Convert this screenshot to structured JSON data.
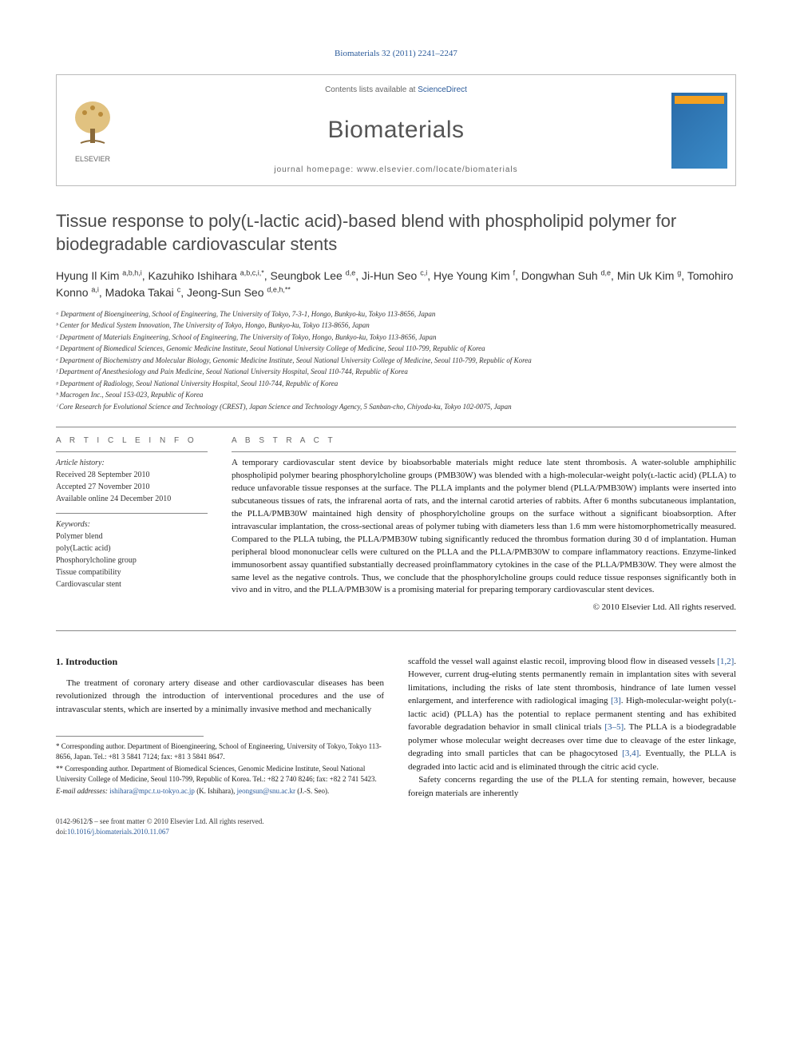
{
  "citation": "Biomaterials 32 (2011) 2241–2247",
  "header": {
    "contents_prefix": "Contents lists available at ",
    "contents_link": "ScienceDirect",
    "journal": "Biomaterials",
    "homepage_prefix": "journal homepage: ",
    "homepage_url": "www.elsevier.com/locate/biomaterials",
    "publisher": "ELSEVIER"
  },
  "title": "Tissue response to poly(ʟ-lactic acid)-based blend with phospholipid polymer for biodegradable cardiovascular stents",
  "authors_html": "Hyung Il Kim <sup>a,b,h,i</sup>, Kazuhiko Ishihara <sup>a,b,c,i,*</sup>, Seungbok Lee <sup>d,e</sup>, Ji-Hun Seo <sup>c,i</sup>, Hye Young Kim <sup>f</sup>, Dongwhan Suh <sup>d,e</sup>, Min Uk Kim <sup>g</sup>, Tomohiro Konno <sup>a,i</sup>, Madoka Takai <sup>c</sup>, Jeong-Sun Seo <sup>d,e,h,**</sup>",
  "affiliations": [
    "ᵃ Department of Bioengineering, School of Engineering, The University of Tokyo, 7-3-1, Hongo, Bunkyo-ku, Tokyo 113-8656, Japan",
    "ᵇ Center for Medical System Innovation, The University of Tokyo, Hongo, Bunkyo-ku, Tokyo 113-8656, Japan",
    "ᶜ Department of Materials Engineering, School of Engineering, The University of Tokyo, Hongo, Bunkyo-ku, Tokyo 113-8656, Japan",
    "ᵈ Department of Biomedical Sciences, Genomic Medicine Institute, Seoul National University College of Medicine, Seoul 110-799, Republic of Korea",
    "ᵉ Department of Biochemistry and Molecular Biology, Genomic Medicine Institute, Seoul National University College of Medicine, Seoul 110-799, Republic of Korea",
    "ᶠ Department of Anesthesiology and Pain Medicine, Seoul National University Hospital, Seoul 110-744, Republic of Korea",
    "ᵍ Department of Radiology, Seoul National University Hospital, Seoul 110-744, Republic of Korea",
    "ʰ Macrogen Inc., Seoul 153-023, Republic of Korea",
    "ⁱ Core Research for Evolutional Science and Technology (CREST), Japan Science and Technology Agency, 5 Sanban-cho, Chiyoda-ku, Tokyo 102-0075, Japan"
  ],
  "article_info": {
    "heading": "A R T I C L E   I N F O",
    "history_label": "Article history:",
    "history": [
      "Received 28 September 2010",
      "Accepted 27 November 2010",
      "Available online 24 December 2010"
    ],
    "keywords_label": "Keywords:",
    "keywords": [
      "Polymer blend",
      "poly(Lactic acid)",
      "Phosphorylcholine group",
      "Tissue compatibility",
      "Cardiovascular stent"
    ]
  },
  "abstract": {
    "heading": "A B S T R A C T",
    "text": "A temporary cardiovascular stent device by bioabsorbable materials might reduce late stent thrombosis. A water-soluble amphiphilic phospholipid polymer bearing phosphorylcholine groups (PMB30W) was blended with a high-molecular-weight poly(ʟ-lactic acid) (PLLA) to reduce unfavorable tissue responses at the surface. The PLLA implants and the polymer blend (PLLA/PMB30W) implants were inserted into subcutaneous tissues of rats, the infrarenal aorta of rats, and the internal carotid arteries of rabbits. After 6 months subcutaneous implantation, the PLLA/PMB30W maintained high density of phosphorylcholine groups on the surface without a significant bioabsorption. After intravascular implantation, the cross-sectional areas of polymer tubing with diameters less than 1.6 mm were histomorphometrically measured. Compared to the PLLA tubing, the PLLA/PMB30W tubing significantly reduced the thrombus formation during 30 d of implantation. Human peripheral blood mononuclear cells were cultured on the PLLA and the PLLA/PMB30W to compare inflammatory reactions. Enzyme-linked immunosorbent assay quantified substantially decreased proinflammatory cytokines in the case of the PLLA/PMB30W. They were almost the same level as the negative controls. Thus, we conclude that the phosphorylcholine groups could reduce tissue responses significantly both in vivo and in vitro, and the PLLA/PMB30W is a promising material for preparing temporary cardiovascular stent devices.",
    "copyright": "© 2010 Elsevier Ltd. All rights reserved."
  },
  "body": {
    "section1_heading": "1. Introduction",
    "col1_p1": "The treatment of coronary artery disease and other cardiovascular diseases has been revolutionized through the introduction of interventional procedures and the use of intravascular stents, which are inserted by a minimally invasive method and mechanically",
    "col2_p1_pre": "scaffold the vessel wall against elastic recoil, improving blood flow in diseased vessels ",
    "col2_p1_ref1": "[1,2]",
    "col2_p1_mid1": ". However, current drug-eluting stents permanently remain in implantation sites with several limitations, including the risks of late stent thrombosis, hindrance of late lumen vessel enlargement, and interference with radiological imaging ",
    "col2_p1_ref2": "[3]",
    "col2_p1_mid2": ". High-molecular-weight poly(ʟ-lactic acid) (PLLA) has the potential to replace permanent stenting and has exhibited favorable degradation behavior in small clinical trials ",
    "col2_p1_ref3": "[3–5]",
    "col2_p1_mid3": ". The PLLA is a biodegradable polymer whose molecular weight decreases over time due to cleavage of the ester linkage, degrading into small particles that can be phagocytosed ",
    "col2_p1_ref4": "[3,4]",
    "col2_p1_end": ". Eventually, the PLLA is degraded into lactic acid and is eliminated through the citric acid cycle.",
    "col2_p2": "Safety concerns regarding the use of the PLLA for stenting remain, however, because foreign materials are inherently"
  },
  "footnotes": {
    "corr1": "* Corresponding author. Department of Bioengineering, School of Engineering, University of Tokyo, Tokyo 113-8656, Japan. Tel.: +81 3 5841 7124; fax: +81 3 5841 8647.",
    "corr2": "** Corresponding author. Department of Biomedical Sciences, Genomic Medicine Institute, Seoul National University College of Medicine, Seoul 110-799, Republic of Korea. Tel.: +82 2 740 8246; fax: +82 2 741 5423.",
    "email_label": "E-mail addresses: ",
    "email1": "ishihara@mpc.t.u-tokyo.ac.jp",
    "email1_who": " (K. Ishihara), ",
    "email2": "jeongsun@snu.ac.kr",
    "email2_who": " (J.-S. Seo)."
  },
  "footer": {
    "issn": "0142-9612/$ – see front matter © 2010 Elsevier Ltd. All rights reserved.",
    "doi_label": "doi:",
    "doi": "10.1016/j.biomaterials.2010.11.067"
  },
  "colors": {
    "link": "#2a5a9a",
    "text": "#1a1a1a",
    "muted": "#666666",
    "rule": "#888888",
    "cover_grad_from": "#2a6ba8",
    "cover_grad_to": "#3a8bc8",
    "cover_accent": "#f4a020"
  }
}
